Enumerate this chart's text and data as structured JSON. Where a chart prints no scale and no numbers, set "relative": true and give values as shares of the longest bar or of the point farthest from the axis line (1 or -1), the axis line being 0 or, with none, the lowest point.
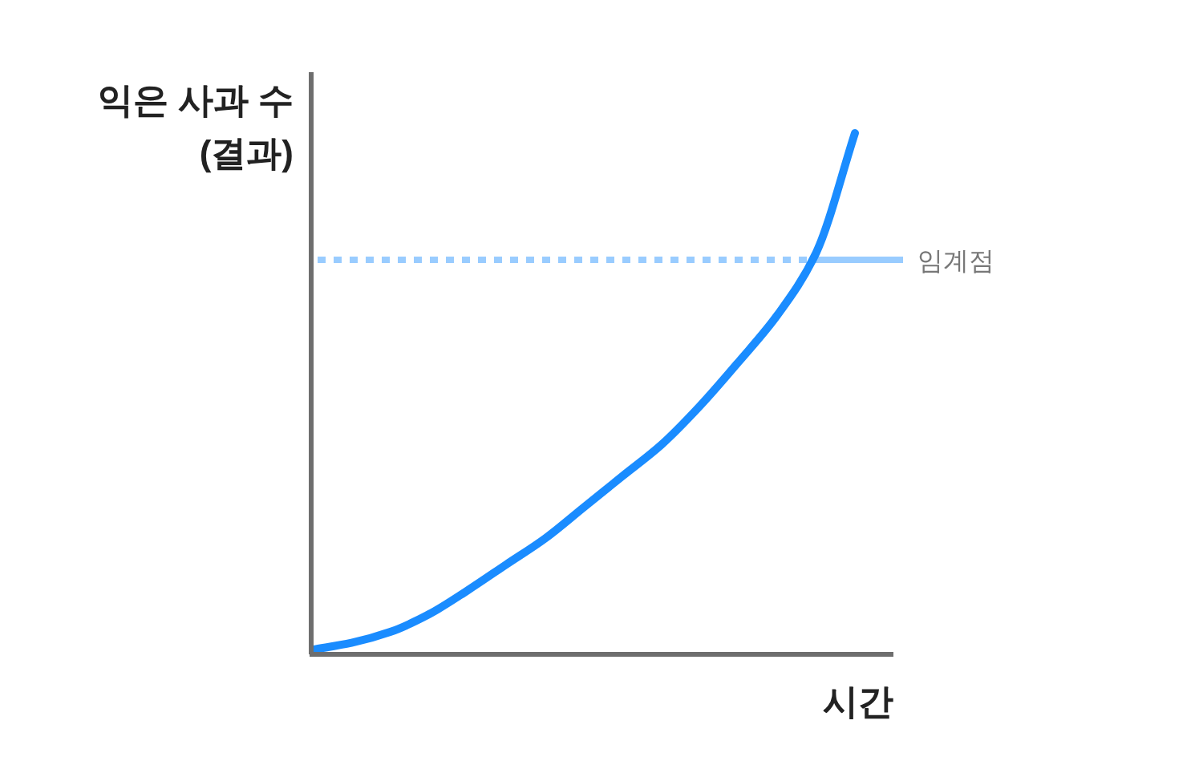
{
  "chart_data": {
    "type": "line",
    "relative": true,
    "xlabel": "시간",
    "ylabel": "익은 사과 수\n(결과)",
    "categories": [
      null,
      null,
      null,
      null,
      null,
      null,
      null,
      null,
      null,
      null,
      null,
      null,
      null,
      null,
      null
    ],
    "series": [
      {
        "color": "#1a8cff",
        "values": [
          0.006,
          0.019,
          0.04,
          0.074,
          0.12,
          0.17,
          0.22,
          0.28,
          0.34,
          0.4,
          0.475,
          0.56,
          0.65,
          0.77,
          1
        ]
      }
    ],
    "ref_lines": [
      {
        "axis": "y",
        "value": 0.756,
        "label": "임계점",
        "color": "#99ccff",
        "line_style": "dotted"
      }
    ]
  }
}
